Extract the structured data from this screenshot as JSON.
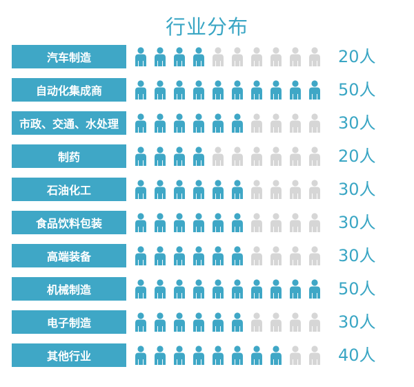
{
  "title": "行业分布",
  "colors": {
    "filled": "#3fa7c6",
    "empty": "#d6d6d6",
    "label_bg": "#3fa7c6",
    "text_accent": "#3aa6c4"
  },
  "icon": "person-icon",
  "chart_data": {
    "type": "bar",
    "title": "行业分布",
    "unit_per_icon": 5,
    "icons_per_row": 10,
    "categories": [
      "汽车制造",
      "自动化集成商",
      "市政、交通、水处理",
      "制药",
      "石油化工",
      "食品饮料包装",
      "高端装备",
      "机械制造",
      "电子制造",
      "其他行业"
    ],
    "values": [
      20,
      50,
      30,
      20,
      30,
      30,
      30,
      50,
      30,
      40
    ],
    "value_labels": [
      "20人",
      "50人",
      "30人",
      "20人",
      "30人",
      "30人",
      "30人",
      "50人",
      "30人",
      "40人"
    ],
    "ylim": [
      0,
      50
    ]
  }
}
